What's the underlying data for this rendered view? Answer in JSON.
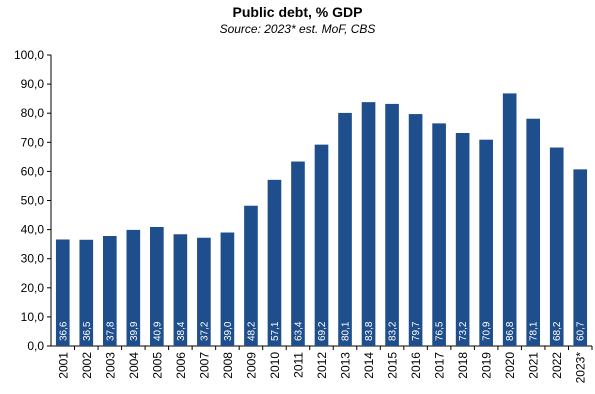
{
  "chart_data": {
    "type": "bar",
    "title": "Public debt, % GDP",
    "subtitle": "Source: 2023* est. MoF, CBS",
    "categories": [
      "2001",
      "2002",
      "2003",
      "2004",
      "2005",
      "2006",
      "2007",
      "2008",
      "2009",
      "2010",
      "2011",
      "2012",
      "2013",
      "2014",
      "2015",
      "2016",
      "2017",
      "2018",
      "2019",
      "2020",
      "2021",
      "2022",
      "2023*"
    ],
    "values": [
      36.6,
      36.5,
      37.8,
      39.9,
      40.9,
      38.4,
      37.2,
      39.0,
      48.2,
      57.1,
      63.4,
      69.2,
      80.1,
      83.8,
      83.2,
      79.7,
      76.5,
      73.2,
      70.9,
      86.8,
      78.1,
      68.2,
      60.7
    ],
    "data_labels": [
      "36,6",
      "36,5",
      "37,8",
      "39,9",
      "40,9",
      "38,4",
      "37,2",
      "39,0",
      "48,2",
      "57,1",
      "63,4",
      "69,2",
      "80,1",
      "83,8",
      "83,2",
      "79,7",
      "76,5",
      "73,2",
      "70,9",
      "86,8",
      "78,1",
      "68,2",
      "60,7"
    ],
    "y_ticks": [
      "0,0",
      "10,0",
      "20,0",
      "30,0",
      "40,0",
      "50,0",
      "60,0",
      "70,0",
      "80,0",
      "90,0",
      "100,0"
    ],
    "ylim": [
      0,
      100
    ],
    "bar_color": "#1f4e8c",
    "grid": false,
    "legend": "none"
  }
}
